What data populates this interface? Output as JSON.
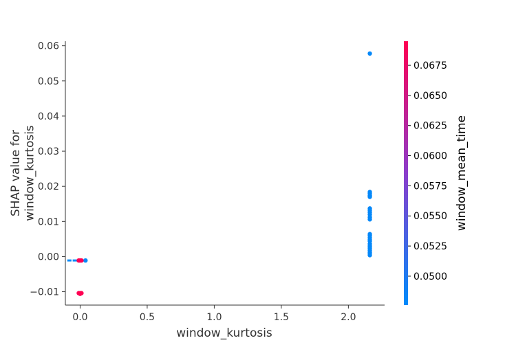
{
  "chart_data": {
    "type": "scatter",
    "xlabel": "window_kurtosis",
    "ylabel": "SHAP value for\nwindow_kurtosis",
    "xlim": [
      -0.11,
      2.27
    ],
    "ylim": [
      -0.0138,
      0.0613
    ],
    "xticks": [
      0.0,
      0.5,
      1.0,
      1.5,
      2.0
    ],
    "xtick_labels": [
      "0.0",
      "0.5",
      "1.0",
      "1.5",
      "2.0"
    ],
    "yticks": [
      -0.01,
      0.0,
      0.01,
      0.02,
      0.03,
      0.04,
      0.05,
      0.06
    ],
    "ytick_labels": [
      "−0.01",
      "0.00",
      "0.01",
      "0.02",
      "0.03",
      "0.04",
      "0.05",
      "0.06"
    ],
    "grid": false,
    "colorbar": {
      "label": "window_mean_time",
      "range": [
        0.0476,
        0.0695
      ],
      "ticks": [
        0.05,
        0.0525,
        0.055,
        0.0575,
        0.06,
        0.0625,
        0.065,
        0.0675
      ],
      "tick_labels": [
        "0.0500",
        "0.0525",
        "0.0550",
        "0.0575",
        "0.0600",
        "0.0625",
        "0.0650",
        "0.0675"
      ],
      "colors": [
        "#008bfb",
        "#8b3dcb",
        "#ff0052"
      ]
    },
    "rug": [
      {
        "x": -0.08,
        "y": -0.0011
      },
      {
        "x": -0.04,
        "y": -0.0011
      }
    ],
    "points": [
      {
        "x": 2.16,
        "y": 0.0578,
        "c": 0.048
      },
      {
        "x": 2.16,
        "y": 0.0184,
        "c": 0.048
      },
      {
        "x": 2.16,
        "y": 0.018,
        "c": 0.048
      },
      {
        "x": 2.16,
        "y": 0.0174,
        "c": 0.048
      },
      {
        "x": 2.16,
        "y": 0.017,
        "c": 0.048
      },
      {
        "x": 2.16,
        "y": 0.0137,
        "c": 0.048
      },
      {
        "x": 2.16,
        "y": 0.0132,
        "c": 0.048
      },
      {
        "x": 2.16,
        "y": 0.0126,
        "c": 0.048
      },
      {
        "x": 2.16,
        "y": 0.012,
        "c": 0.048
      },
      {
        "x": 2.16,
        "y": 0.0112,
        "c": 0.048
      },
      {
        "x": 2.16,
        "y": 0.0106,
        "c": 0.048
      },
      {
        "x": 2.16,
        "y": 0.0064,
        "c": 0.048
      },
      {
        "x": 2.16,
        "y": 0.006,
        "c": 0.048
      },
      {
        "x": 2.16,
        "y": 0.0054,
        "c": 0.048
      },
      {
        "x": 2.16,
        "y": 0.0048,
        "c": 0.048
      },
      {
        "x": 2.16,
        "y": 0.0044,
        "c": 0.048
      },
      {
        "x": 2.16,
        "y": 0.0036,
        "c": 0.048
      },
      {
        "x": 2.16,
        "y": 0.003,
        "c": 0.048
      },
      {
        "x": 2.16,
        "y": 0.0024,
        "c": 0.048
      },
      {
        "x": 2.16,
        "y": 0.0018,
        "c": 0.048
      },
      {
        "x": 2.16,
        "y": 0.0012,
        "c": 0.048
      },
      {
        "x": 2.16,
        "y": 0.0008,
        "c": 0.048
      },
      {
        "x": 2.16,
        "y": 0.0004,
        "c": 0.048
      },
      {
        "x": 0.04,
        "y": -0.0011,
        "c": 0.048
      },
      {
        "x": 0.0,
        "y": -0.0011,
        "c": 0.0695
      },
      {
        "x": 0.01,
        "y": -0.0011,
        "c": 0.0695
      },
      {
        "x": -0.01,
        "y": -0.0011,
        "c": 0.0695
      },
      {
        "x": 0.0,
        "y": -0.0104,
        "c": 0.0695
      },
      {
        "x": -0.01,
        "y": -0.0104,
        "c": 0.0695
      },
      {
        "x": 0.01,
        "y": -0.0104,
        "c": 0.0695
      },
      {
        "x": 0.0,
        "y": -0.0106,
        "c": 0.0695
      }
    ]
  }
}
